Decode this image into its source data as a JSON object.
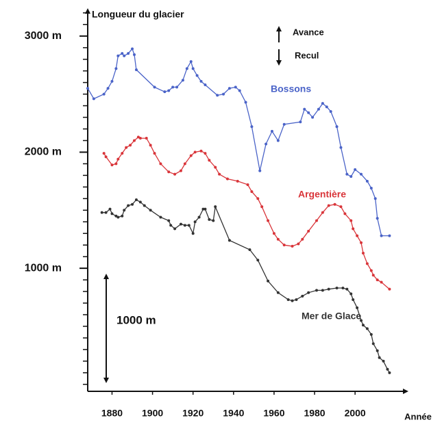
{
  "chart_data": {
    "type": "line",
    "y_label": "Longueur du glacier",
    "x_label": "Année",
    "annotations": {
      "up": "Avance",
      "down": "Recul",
      "scale": "1000 m"
    },
    "xlim": [
      1868,
      2026
    ],
    "xticks": [
      1880,
      1900,
      1920,
      1940,
      1960,
      1980,
      2000
    ],
    "ylim": [
      -60,
      3240
    ],
    "yticks": [
      {
        "value": 1000,
        "label": "1000 m"
      },
      {
        "value": 2000,
        "label": "2000 m"
      },
      {
        "value": 3000,
        "label": "3000 m"
      }
    ],
    "yticks_minor": [
      0,
      100,
      200,
      300,
      400,
      500,
      600,
      700,
      800,
      900,
      1100,
      1200,
      1300,
      1400,
      1500,
      1600,
      1700,
      1800,
      1900,
      2100,
      2200,
      2300,
      2400,
      2500,
      2600,
      2700,
      2800,
      2900,
      3100,
      3200
    ],
    "series": [
      {
        "name": "Bossons",
        "color": "#4a63c8",
        "x": [
          1868,
          1871,
          1876,
          1878,
          1880,
          1882,
          1883,
          1885,
          1886,
          1888,
          1890,
          1891,
          1892,
          1901,
          1906,
          1908,
          1910,
          1912,
          1915,
          1917,
          1919,
          1920,
          1922,
          1924,
          1926,
          1932,
          1935,
          1938,
          1941,
          1943,
          1946,
          1949,
          1953,
          1956,
          1959,
          1962,
          1965,
          1973,
          1975,
          1977,
          1979,
          1982,
          1984,
          1986,
          1988,
          1991,
          1993,
          1996,
          1998,
          2000,
          2003,
          2006,
          2008,
          2010,
          2011,
          2013,
          2017
        ],
        "values": [
          2550,
          2460,
          2500,
          2550,
          2610,
          2720,
          2830,
          2850,
          2830,
          2850,
          2890,
          2840,
          2710,
          2560,
          2520,
          2530,
          2560,
          2560,
          2620,
          2720,
          2780,
          2720,
          2660,
          2610,
          2580,
          2490,
          2500,
          2550,
          2560,
          2530,
          2430,
          2220,
          1840,
          2070,
          2180,
          2100,
          2240,
          2260,
          2370,
          2340,
          2300,
          2370,
          2420,
          2390,
          2350,
          2220,
          2040,
          1810,
          1790,
          1850,
          1810,
          1750,
          1690,
          1600,
          1430,
          1280,
          1280
        ]
      },
      {
        "name": "Argentière",
        "color": "#d9353a",
        "x": [
          1876,
          1877,
          1880,
          1882,
          1883,
          1885,
          1887,
          1889,
          1891,
          1893,
          1894,
          1897,
          1899,
          1901,
          1904,
          1908,
          1911,
          1914,
          1916,
          1919,
          1921,
          1924,
          1926,
          1928,
          1931,
          1933,
          1937,
          1942,
          1947,
          1949,
          1952,
          1954,
          1957,
          1960,
          1962,
          1965,
          1969,
          1972,
          1974,
          1977,
          1981,
          1984,
          1987,
          1990,
          1993,
          1995,
          1998,
          1999,
          2001,
          2003,
          2004,
          2006,
          2008,
          2009,
          2011,
          2013,
          2017
        ],
        "values": [
          1990,
          1960,
          1890,
          1900,
          1940,
          1990,
          2040,
          2060,
          2100,
          2130,
          2120,
          2120,
          2060,
          1990,
          1900,
          1830,
          1810,
          1840,
          1900,
          1970,
          2000,
          2010,
          1990,
          1930,
          1870,
          1810,
          1770,
          1750,
          1720,
          1660,
          1600,
          1530,
          1410,
          1300,
          1250,
          1200,
          1190,
          1210,
          1250,
          1320,
          1410,
          1480,
          1540,
          1550,
          1530,
          1470,
          1410,
          1340,
          1280,
          1220,
          1130,
          1040,
          980,
          940,
          900,
          880,
          820
        ]
      },
      {
        "name": "Mer de Glace",
        "color": "#333333",
        "x": [
          1875,
          1877,
          1879,
          1880,
          1882,
          1883,
          1885,
          1886,
          1888,
          1890,
          1892,
          1894,
          1896,
          1899,
          1904,
          1908,
          1909,
          1911,
          1914,
          1916,
          1918,
          1920,
          1921,
          1923,
          1925,
          1926,
          1928,
          1930,
          1931,
          1938,
          1948,
          1952,
          1957,
          1962,
          1967,
          1969,
          1971,
          1974,
          1977,
          1981,
          1984,
          1987,
          1991,
          1994,
          1996,
          1998,
          1999,
          2001,
          2003,
          2004,
          2006,
          2008,
          2009,
          2011,
          2012,
          2014,
          2016,
          2017
        ],
        "values": [
          1480,
          1480,
          1510,
          1470,
          1450,
          1440,
          1450,
          1500,
          1540,
          1550,
          1590,
          1570,
          1540,
          1500,
          1440,
          1410,
          1370,
          1340,
          1380,
          1370,
          1370,
          1300,
          1400,
          1440,
          1510,
          1510,
          1420,
          1410,
          1530,
          1240,
          1160,
          1070,
          890,
          790,
          730,
          720,
          730,
          760,
          790,
          810,
          810,
          820,
          830,
          830,
          820,
          780,
          730,
          660,
          550,
          510,
          480,
          430,
          350,
          290,
          230,
          200,
          130,
          100
        ]
      }
    ]
  }
}
